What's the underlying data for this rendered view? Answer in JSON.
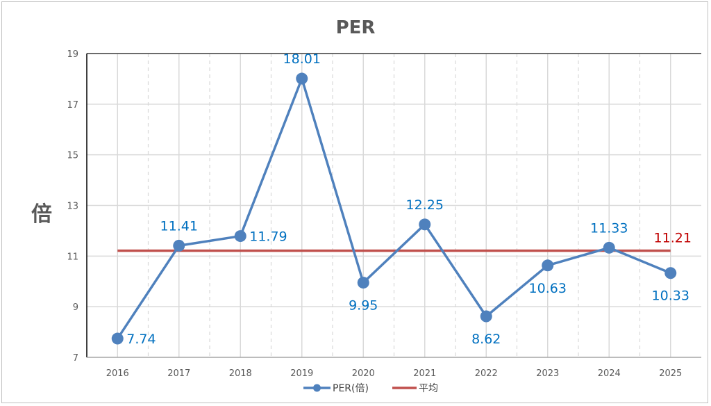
{
  "chart_data": {
    "type": "line",
    "title": "PER",
    "ylabel": "倍",
    "xlabel": "",
    "categories": [
      "2016",
      "2017",
      "2018",
      "2019",
      "2020",
      "2021",
      "2022",
      "2023",
      "2024",
      "2025"
    ],
    "series": [
      {
        "name": "PER(倍)",
        "values": [
          7.74,
          11.41,
          11.79,
          18.01,
          9.95,
          12.25,
          8.62,
          10.63,
          11.33,
          10.33
        ],
        "color": "#4f81bd",
        "label_color": "#0070c0"
      },
      {
        "name": "平均",
        "values": [
          11.21,
          11.21,
          11.21,
          11.21,
          11.21,
          11.21,
          11.21,
          11.21,
          11.21,
          11.21
        ],
        "color": "#c0504d",
        "label": "11.21",
        "label_color": "#c00000"
      }
    ],
    "ylim": [
      7,
      19
    ],
    "yticks": [
      "7",
      "9",
      "11",
      "13",
      "15",
      "17",
      "19"
    ],
    "grid": true,
    "legend": "bottom"
  }
}
